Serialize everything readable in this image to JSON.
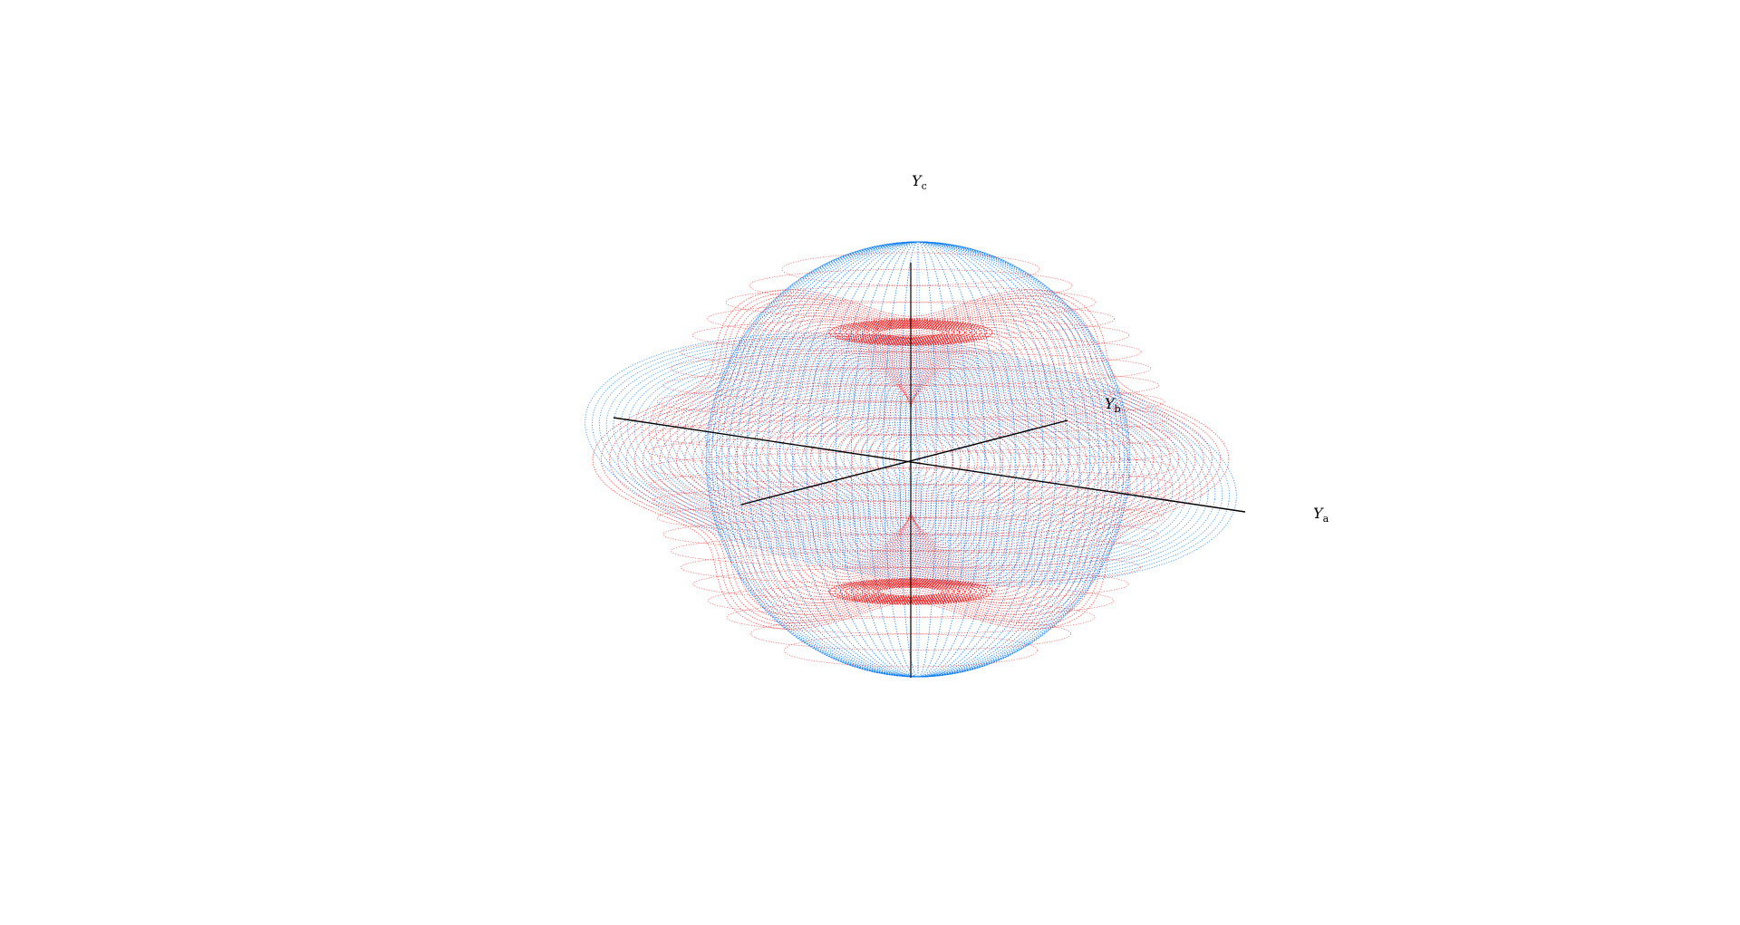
{
  "axes": {
    "a": {
      "symbol": "Y",
      "subscript": "a"
    },
    "b": {
      "symbol": "Y",
      "subscript": "b"
    },
    "c": {
      "symbol": "Y",
      "subscript": "c"
    }
  },
  "colors": {
    "blue_surface": "#0a7cf5",
    "red_surface": "#f20000",
    "axis_line": "#000000",
    "background": "#ffffff"
  }
}
